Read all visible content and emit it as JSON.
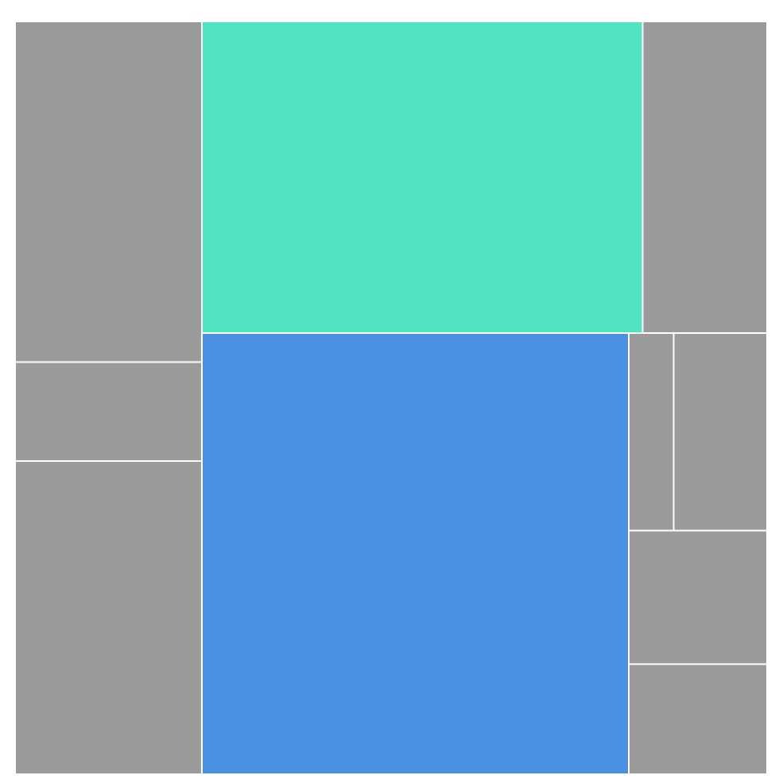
{
  "chart_data": {
    "type": "treemap",
    "title": "",
    "legend": "none",
    "colors": {
      "default": "#9b9b9b",
      "highlight_primary": "#4a90e2",
      "highlight_secondary": "#50e3c2",
      "border": "#ffffff"
    },
    "groups": [
      {
        "name": "",
        "leaves": [
          {
            "name": "",
            "value": 1000,
            "color": "#9b9b9b"
          },
          {
            "name": "",
            "value": 290,
            "color": "#9b9b9b"
          },
          {
            "name": "",
            "value": 920,
            "color": "#9b9b9b"
          }
        ]
      },
      {
        "name": "",
        "leaves": [
          {
            "name": "",
            "value": 2160,
            "color": "#50e3c2"
          },
          {
            "name": "",
            "value": 2960,
            "color": "#4a90e2"
          }
        ]
      },
      {
        "name": "",
        "leaves": [
          {
            "name": "",
            "value": 610,
            "color": "#9b9b9b"
          },
          {
            "name": "",
            "value": 140,
            "color": "#9b9b9b"
          },
          {
            "name": "",
            "value": 290,
            "color": "#9b9b9b"
          },
          {
            "name": "",
            "value": 290,
            "color": "#9b9b9b"
          },
          {
            "name": "",
            "value": 240,
            "color": "#9b9b9b"
          }
        ]
      }
    ]
  }
}
